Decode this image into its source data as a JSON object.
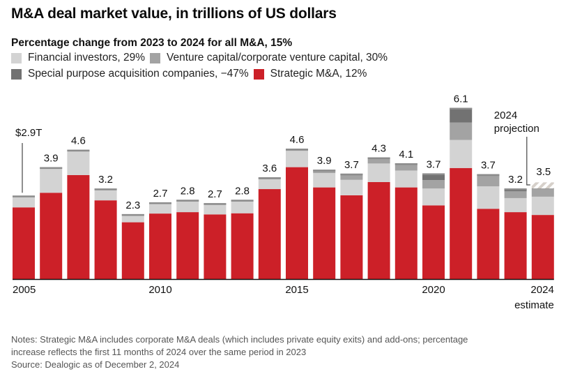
{
  "title": "M&A deal market value, in trillions of US dollars",
  "subtitle": "Percentage change from 2023 to 2024 for all M&A, 15%",
  "legend": [
    {
      "key": "fi",
      "label": "Financial investors, 29%",
      "color": "#d3d3d3"
    },
    {
      "key": "vc",
      "label": "Venture capital/corporate venture capital, 30%",
      "color": "#a3a3a3"
    },
    {
      "key": "spac",
      "label": "Special purpose acquisition companies, −47%",
      "color": "#727272"
    },
    {
      "key": "strategic",
      "label": "Strategic M&A, 12%",
      "color": "#cc2028"
    }
  ],
  "chart_data": {
    "type": "bar",
    "stacked": true,
    "title": "M&A deal market value, in trillions of US dollars",
    "xlabel": "",
    "ylabel": "Trillions of US dollars",
    "ylim": [
      0,
      6.5
    ],
    "grid": false,
    "legend_position": "top-left",
    "categories": [
      "2005",
      "2006",
      "2007",
      "2008",
      "2009",
      "2010",
      "2011",
      "2012",
      "2013",
      "2014",
      "2015",
      "2016",
      "2017",
      "2018",
      "2019",
      "2020",
      "2021",
      "2022",
      "2023",
      "2024"
    ],
    "x_tick_labels": [
      "2005",
      "2010",
      "2015",
      "2020",
      "2024"
    ],
    "x_tick_sublabel": {
      "category": "2024",
      "text": "estimate"
    },
    "series": [
      {
        "name": "Strategic M&A",
        "key": "strategic",
        "values": [
          2.55,
          3.07,
          3.7,
          2.8,
          2.02,
          2.33,
          2.38,
          2.3,
          2.34,
          3.2,
          3.98,
          3.26,
          2.98,
          3.45,
          3.26,
          2.62,
          3.95,
          2.5,
          2.38,
          2.28
        ]
      },
      {
        "name": "Financial investors",
        "key": "fi",
        "values": [
          0.42,
          0.86,
          0.85,
          0.37,
          0.24,
          0.35,
          0.38,
          0.34,
          0.42,
          0.35,
          0.58,
          0.51,
          0.55,
          0.66,
          0.6,
          0.6,
          1.0,
          0.8,
          0.5,
          0.65
        ]
      },
      {
        "name": "Venture capital/corporate venture capital",
        "key": "vc",
        "values": [
          0.0,
          0.05,
          0.05,
          0.05,
          0.05,
          0.05,
          0.06,
          0.06,
          0.06,
          0.07,
          0.08,
          0.12,
          0.2,
          0.22,
          0.22,
          0.3,
          0.62,
          0.38,
          0.24,
          0.27
        ]
      },
      {
        "name": "Special purpose acquisition companies",
        "key": "spac",
        "values": [
          0.0,
          0.0,
          0.0,
          0.0,
          0.0,
          0.0,
          0.0,
          0.0,
          0.0,
          0.0,
          0.0,
          0.0,
          0.02,
          0.0,
          0.04,
          0.24,
          0.52,
          0.05,
          0.1,
          0.02
        ]
      },
      {
        "name": "2024 projection",
        "key": "projection",
        "values": [
          0,
          0,
          0,
          0,
          0,
          0,
          0,
          0,
          0,
          0,
          0,
          0,
          0,
          0,
          0,
          0,
          0,
          0,
          0,
          0.22
        ]
      }
    ],
    "totals": [
      2.9,
      3.9,
      4.6,
      3.2,
      2.3,
      2.7,
      2.8,
      2.7,
      2.8,
      3.6,
      4.6,
      3.9,
      3.7,
      4.3,
      4.1,
      3.7,
      6.1,
      3.7,
      3.2,
      3.5
    ],
    "total_labels": [
      "$2.9T",
      "3.9",
      "4.6",
      "3.2",
      "2.3",
      "2.7",
      "2.8",
      "2.7",
      "2.8",
      "3.6",
      "4.6",
      "3.9",
      "3.7",
      "4.3",
      "4.1",
      "3.7",
      "6.1",
      "3.7",
      "3.2",
      "3.5"
    ],
    "annotations": [
      {
        "category": "2005",
        "text": "$2.9T",
        "type": "leader-line"
      },
      {
        "category": "2024",
        "text": "2024 projection",
        "type": "leader-line"
      }
    ]
  },
  "notes": [
    "Notes: Strategic M&A includes corporate M&A deals (which includes private equity exits) and add-ons; percentage",
    "increase reflects the first 11 months of 2024 over the same period in 2023",
    "Source: Dealogic as of December 2, 2024"
  ]
}
